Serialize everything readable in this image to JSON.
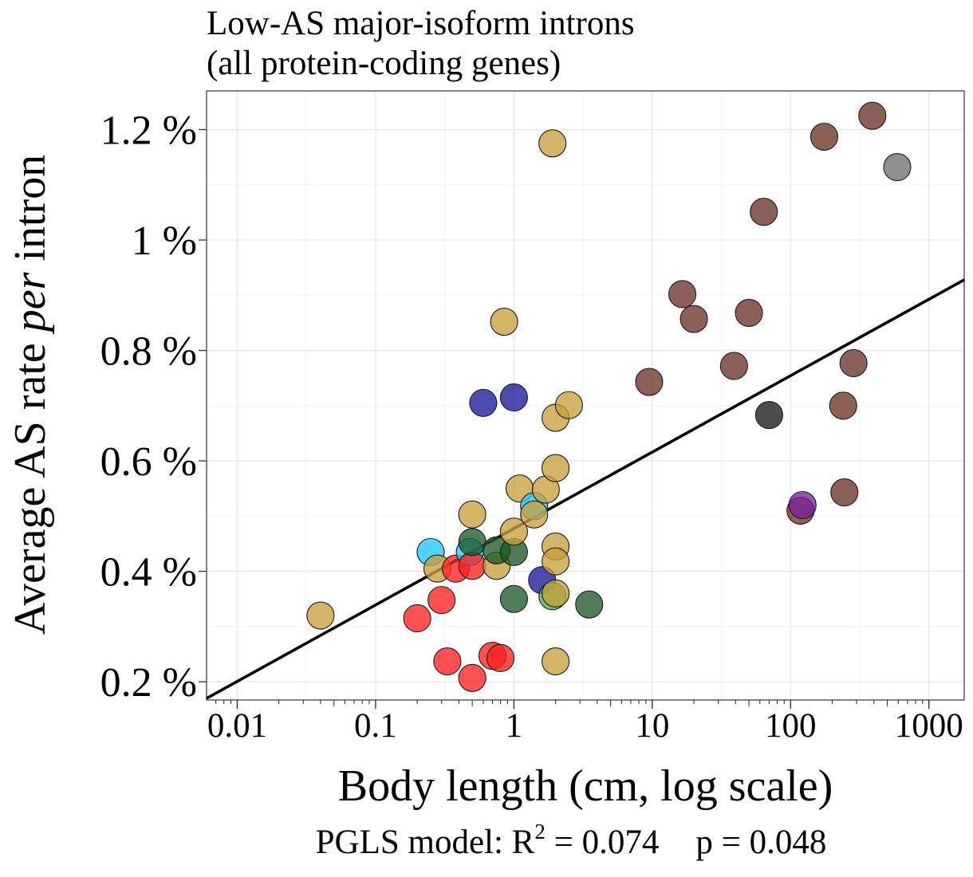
{
  "chart_data": {
    "type": "scatter",
    "title": [
      "Low-AS major-isoform introns",
      "(all protein-coding genes)"
    ],
    "xlabel": "Body length (cm, log scale)",
    "ylabel": {
      "pre": "Average AS rate ",
      "em": "per",
      "post": " intron"
    },
    "x_scale": "log10",
    "xlim": [
      0.006,
      1800
    ],
    "ylim": [
      0.167,
      1.27
    ],
    "x_ticks": [
      {
        "value": 0.01,
        "label": "0.01"
      },
      {
        "value": 0.1,
        "label": "0.1"
      },
      {
        "value": 1,
        "label": "1"
      },
      {
        "value": 10,
        "label": "10"
      },
      {
        "value": 100,
        "label": "100"
      },
      {
        "value": 1000,
        "label": "1000"
      }
    ],
    "y_ticks": [
      {
        "value": 0.2,
        "label": "0.2 %"
      },
      {
        "value": 0.4,
        "label": "0.4 %"
      },
      {
        "value": 0.6,
        "label": "0.6 %"
      },
      {
        "value": 0.8,
        "label": "0.8 %"
      },
      {
        "value": 1.0,
        "label": "1 %"
      },
      {
        "value": 1.2,
        "label": "1.2 %"
      }
    ],
    "grid": true,
    "regression_line": {
      "points": [
        [
          0.006,
          0.17
        ],
        [
          1800,
          0.928
        ]
      ],
      "color": "#000000"
    },
    "caption": {
      "prefix": "PGLS model: R",
      "sup": "2",
      "r2_text": " = 0.074",
      "p_text": "p = 0.048"
    },
    "points": [
      {
        "x": 0.04,
        "y": 0.32,
        "color": "#c8a03c"
      },
      {
        "x": 0.2,
        "y": 0.315,
        "color": "#ff2020"
      },
      {
        "x": 0.25,
        "y": 0.435,
        "color": "#20c8ff"
      },
      {
        "x": 0.28,
        "y": 0.405,
        "color": "#c8a03c"
      },
      {
        "x": 0.3,
        "y": 0.348,
        "color": "#ff2020"
      },
      {
        "x": 0.33,
        "y": 0.237,
        "color": "#ff2020"
      },
      {
        "x": 0.38,
        "y": 0.405,
        "color": "#ff2020"
      },
      {
        "x": 0.48,
        "y": 0.435,
        "color": "#20c8ff"
      },
      {
        "x": 0.5,
        "y": 0.41,
        "color": "#ff2020"
      },
      {
        "x": 0.5,
        "y": 0.453,
        "color": "#1e5a28"
      },
      {
        "x": 0.5,
        "y": 0.503,
        "color": "#c8a03c"
      },
      {
        "x": 0.5,
        "y": 0.207,
        "color": "#ff2020"
      },
      {
        "x": 0.6,
        "y": 0.705,
        "color": "#1a1a9a"
      },
      {
        "x": 0.7,
        "y": 0.247,
        "color": "#ff2020"
      },
      {
        "x": 0.75,
        "y": 0.41,
        "color": "#c8a03c"
      },
      {
        "x": 0.75,
        "y": 0.438,
        "color": "#1e5a28"
      },
      {
        "x": 0.8,
        "y": 0.243,
        "color": "#ff2020"
      },
      {
        "x": 0.85,
        "y": 0.852,
        "color": "#c8a03c"
      },
      {
        "x": 1.0,
        "y": 0.715,
        "color": "#1a1a9a"
      },
      {
        "x": 1.0,
        "y": 0.435,
        "color": "#1e5a28"
      },
      {
        "x": 1.0,
        "y": 0.35,
        "color": "#1e5a28"
      },
      {
        "x": 1.0,
        "y": 0.472,
        "color": "#c8a03c"
      },
      {
        "x": 1.1,
        "y": 0.55,
        "color": "#c8a03c"
      },
      {
        "x": 1.4,
        "y": 0.518,
        "color": "#20c8ff"
      },
      {
        "x": 1.4,
        "y": 0.503,
        "color": "#c8a03c"
      },
      {
        "x": 1.6,
        "y": 0.384,
        "color": "#1a1a9a"
      },
      {
        "x": 1.7,
        "y": 0.548,
        "color": "#c8a03c"
      },
      {
        "x": 1.9,
        "y": 1.175,
        "color": "#c8a03c"
      },
      {
        "x": 1.9,
        "y": 0.355,
        "color": "#4caf50"
      },
      {
        "x": 2.0,
        "y": 0.678,
        "color": "#c8a03c"
      },
      {
        "x": 2.0,
        "y": 0.587,
        "color": "#c8a03c"
      },
      {
        "x": 2.0,
        "y": 0.445,
        "color": "#c8a03c"
      },
      {
        "x": 2.0,
        "y": 0.418,
        "color": "#c8a03c"
      },
      {
        "x": 2.0,
        "y": 0.36,
        "color": "#c8a03c"
      },
      {
        "x": 2.0,
        "y": 0.237,
        "color": "#c8a03c"
      },
      {
        "x": 2.5,
        "y": 0.701,
        "color": "#c8a03c"
      },
      {
        "x": 3.5,
        "y": 0.34,
        "color": "#1e5a28"
      },
      {
        "x": 9.5,
        "y": 0.743,
        "color": "#6b3328"
      },
      {
        "x": 16.5,
        "y": 0.902,
        "color": "#6b3328"
      },
      {
        "x": 20,
        "y": 0.857,
        "color": "#6b3328"
      },
      {
        "x": 39,
        "y": 0.772,
        "color": "#6b3328"
      },
      {
        "x": 50,
        "y": 0.868,
        "color": "#6b3328"
      },
      {
        "x": 64,
        "y": 1.051,
        "color": "#6b3328"
      },
      {
        "x": 70,
        "y": 0.683,
        "color": "#1a1a1a"
      },
      {
        "x": 118,
        "y": 0.51,
        "color": "#6b3328"
      },
      {
        "x": 122,
        "y": 0.52,
        "color": "#7b1fa2"
      },
      {
        "x": 175,
        "y": 1.187,
        "color": "#6b3328"
      },
      {
        "x": 240,
        "y": 0.7,
        "color": "#6b3328"
      },
      {
        "x": 245,
        "y": 0.543,
        "color": "#6b3328"
      },
      {
        "x": 285,
        "y": 0.777,
        "color": "#6b3328"
      },
      {
        "x": 390,
        "y": 1.225,
        "color": "#6b3328"
      },
      {
        "x": 590,
        "y": 1.132,
        "color": "#707070"
      }
    ]
  }
}
